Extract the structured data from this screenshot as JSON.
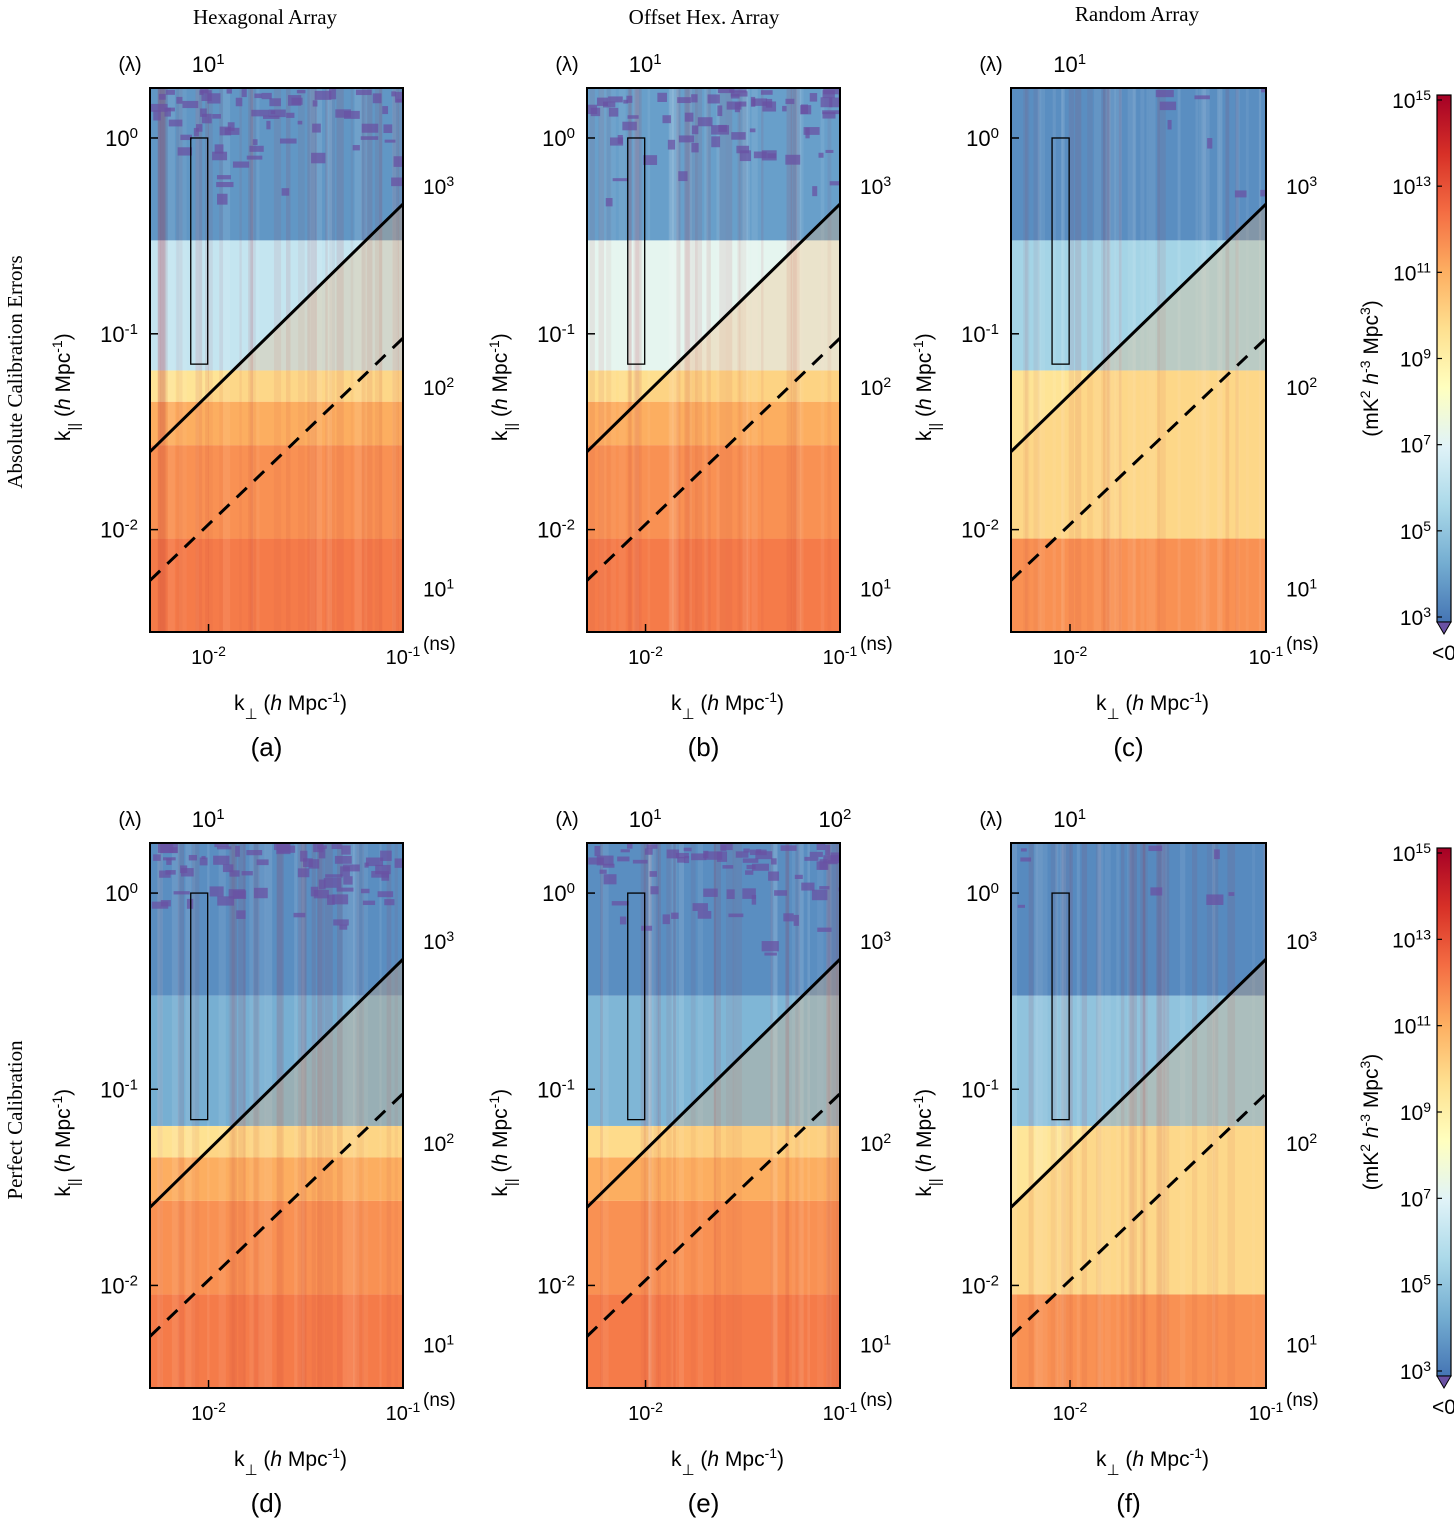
{
  "figure": {
    "column_titles": [
      "Hexagonal Array",
      "Offset Hex. Array",
      "Random Array"
    ],
    "row_labels": [
      "Absolute Calibration Errors",
      "Perfect Calibration"
    ]
  },
  "colorbar": {
    "label": "(mK^2 h^-3 Mpc^3)",
    "ticks": [
      "10^15",
      "10^13",
      "10^11",
      "10^9",
      "10^7",
      "10^5",
      "10^3"
    ],
    "below_label": "<0",
    "colors": [
      "#a50026",
      "#d73027",
      "#f46d43",
      "#fdae61",
      "#fee090",
      "#ffffbf",
      "#e0f3f8",
      "#abd9e9",
      "#74add1",
      "#4575b4"
    ],
    "below_color": "#6a51a3"
  },
  "chart_data": [
    {
      "type": "heatmap",
      "panel_label": "(a)",
      "array": "Hexagonal Array",
      "calibration": "Absolute Calibration Errors",
      "xlabel": "k⊥ (h Mpc^-1)",
      "ylabel": "k|| (h Mpc^-1)",
      "top_axis_label": "(λ)",
      "top_ticks": [
        "10^1"
      ],
      "right_axis_label": "(ns)",
      "right_ticks": [
        "10^3",
        "10^2",
        "10^1"
      ],
      "x_ticks": [
        "10^-2",
        "10^-1"
      ],
      "y_ticks": [
        "10^0",
        "10^-1",
        "10^-2"
      ],
      "xlim": [
        0.005,
        0.1
      ],
      "ylim": [
        0.003,
        1.8
      ],
      "log10_power_bands": [
        {
          "k_par": [
            0.003,
            0.009
          ],
          "log10_P": 12.4
        },
        {
          "k_par": [
            0.009,
            0.027
          ],
          "log10_P": 11.8
        },
        {
          "k_par": [
            0.027,
            0.045
          ],
          "log10_P": 11.0
        },
        {
          "k_par": [
            0.045,
            0.065
          ],
          "log10_P": 9.5
        },
        {
          "k_par": [
            0.065,
            0.3
          ],
          "log10_P": 6.3
        },
        {
          "k_par": [
            0.3,
            1.8
          ],
          "log10_P": 3.8
        }
      ],
      "horizon_line": {
        "k_perp": [
          0.005,
          0.1
        ],
        "k_par": [
          0.025,
          0.46
        ]
      },
      "primary_beam_line": {
        "k_perp": [
          0.005,
          0.1
        ],
        "k_par": [
          0.0055,
          0.095
        ]
      },
      "eor_window_box": {
        "k_perp": [
          0.0081,
          0.0099
        ],
        "k_par": [
          0.07,
          1.0
        ]
      }
    },
    {
      "type": "heatmap",
      "panel_label": "(b)",
      "array": "Offset Hex. Array",
      "calibration": "Absolute Calibration Errors",
      "xlabel": "k⊥ (h Mpc^-1)",
      "ylabel": "k|| (h Mpc^-1)",
      "top_axis_label": "(λ)",
      "top_ticks": [
        "10^1"
      ],
      "right_axis_label": "(ns)",
      "right_ticks": [
        "10^3",
        "10^2",
        "10^1"
      ],
      "x_ticks": [
        "10^-2",
        "10^-1"
      ],
      "y_ticks": [
        "10^0",
        "10^-1",
        "10^-2"
      ],
      "xlim": [
        0.005,
        0.1
      ],
      "ylim": [
        0.003,
        1.8
      ],
      "log10_power_bands": [
        {
          "k_par": [
            0.003,
            0.009
          ],
          "log10_P": 12.4
        },
        {
          "k_par": [
            0.009,
            0.027
          ],
          "log10_P": 11.8
        },
        {
          "k_par": [
            0.027,
            0.045
          ],
          "log10_P": 11.0
        },
        {
          "k_par": [
            0.045,
            0.065
          ],
          "log10_P": 9.7
        },
        {
          "k_par": [
            0.065,
            0.3
          ],
          "log10_P": 7.2
        },
        {
          "k_par": [
            0.3,
            1.8
          ],
          "log10_P": 4.0
        }
      ],
      "horizon_line": {
        "k_perp": [
          0.005,
          0.1
        ],
        "k_par": [
          0.025,
          0.46
        ]
      },
      "primary_beam_line": {
        "k_perp": [
          0.005,
          0.1
        ],
        "k_par": [
          0.0055,
          0.095
        ]
      },
      "eor_window_box": {
        "k_perp": [
          0.0081,
          0.0099
        ],
        "k_par": [
          0.07,
          1.0
        ]
      }
    },
    {
      "type": "heatmap",
      "panel_label": "(c)",
      "array": "Random Array",
      "calibration": "Absolute Calibration Errors",
      "xlabel": "k⊥ (h Mpc^-1)",
      "ylabel": "k|| (h Mpc^-1)",
      "top_axis_label": "(λ)",
      "top_ticks": [
        "10^1"
      ],
      "right_axis_label": "(ns)",
      "right_ticks": [
        "10^3",
        "10^2",
        "10^1"
      ],
      "x_ticks": [
        "10^-2",
        "10^-1"
      ],
      "y_ticks": [
        "10^0",
        "10^-1",
        "10^-2"
      ],
      "xlim": [
        0.005,
        0.1
      ],
      "ylim": [
        0.003,
        1.8
      ],
      "log10_power_bands": [
        {
          "k_par": [
            0.003,
            0.009
          ],
          "log10_P": 11.8
        },
        {
          "k_par": [
            0.009,
            0.065
          ],
          "log10_P": 9.5
        },
        {
          "k_par": [
            0.065,
            0.3
          ],
          "log10_P": 5.5
        },
        {
          "k_par": [
            0.3,
            1.8
          ],
          "log10_P": 3.6
        }
      ],
      "horizon_line": {
        "k_perp": [
          0.005,
          0.1
        ],
        "k_par": [
          0.025,
          0.46
        ]
      },
      "primary_beam_line": {
        "k_perp": [
          0.005,
          0.1
        ],
        "k_par": [
          0.0055,
          0.095
        ]
      },
      "eor_window_box": {
        "k_perp": [
          0.0081,
          0.0099
        ],
        "k_par": [
          0.07,
          1.0
        ]
      }
    },
    {
      "type": "heatmap",
      "panel_label": "(d)",
      "array": "Hexagonal Array",
      "calibration": "Perfect Calibration",
      "xlabel": "k⊥ (h Mpc^-1)",
      "ylabel": "k|| (h Mpc^-1)",
      "top_axis_label": "(λ)",
      "top_ticks": [
        "10^1"
      ],
      "right_axis_label": "(ns)",
      "right_ticks": [
        "10^3",
        "10^2",
        "10^1"
      ],
      "x_ticks": [
        "10^-2",
        "10^-1"
      ],
      "y_ticks": [
        "10^0",
        "10^-1",
        "10^-2"
      ],
      "xlim": [
        0.005,
        0.1
      ],
      "ylim": [
        0.003,
        1.8
      ],
      "log10_power_bands": [
        {
          "k_par": [
            0.003,
            0.009
          ],
          "log10_P": 12.4
        },
        {
          "k_par": [
            0.009,
            0.027
          ],
          "log10_P": 11.8
        },
        {
          "k_par": [
            0.027,
            0.045
          ],
          "log10_P": 11.0
        },
        {
          "k_par": [
            0.045,
            0.065
          ],
          "log10_P": 9.6
        },
        {
          "k_par": [
            0.065,
            0.3
          ],
          "log10_P": 4.4
        },
        {
          "k_par": [
            0.3,
            1.8
          ],
          "log10_P": 3.6
        }
      ],
      "horizon_line": {
        "k_perp": [
          0.005,
          0.1
        ],
        "k_par": [
          0.025,
          0.46
        ]
      },
      "primary_beam_line": {
        "k_perp": [
          0.005,
          0.1
        ],
        "k_par": [
          0.0055,
          0.095
        ]
      },
      "eor_window_box": {
        "k_perp": [
          0.0081,
          0.0099
        ],
        "k_par": [
          0.07,
          1.0
        ]
      }
    },
    {
      "type": "heatmap",
      "panel_label": "(e)",
      "array": "Offset Hex. Array",
      "calibration": "Perfect Calibration",
      "xlabel": "k⊥ (h Mpc^-1)",
      "ylabel": "k|| (h Mpc^-1)",
      "top_axis_label": "(λ)",
      "top_ticks": [
        "10^1",
        "10^2"
      ],
      "right_axis_label": "(ns)",
      "right_ticks": [
        "10^3",
        "10^2",
        "10^1"
      ],
      "x_ticks": [
        "10^-2",
        "10^-1"
      ],
      "y_ticks": [
        "10^0",
        "10^-1",
        "10^-2"
      ],
      "xlim": [
        0.005,
        0.1
      ],
      "ylim": [
        0.003,
        1.8
      ],
      "log10_power_bands": [
        {
          "k_par": [
            0.003,
            0.009
          ],
          "log10_P": 12.4
        },
        {
          "k_par": [
            0.009,
            0.027
          ],
          "log10_P": 11.8
        },
        {
          "k_par": [
            0.027,
            0.045
          ],
          "log10_P": 11.0
        },
        {
          "k_par": [
            0.045,
            0.065
          ],
          "log10_P": 9.8
        },
        {
          "k_par": [
            0.065,
            0.3
          ],
          "log10_P": 4.6
        },
        {
          "k_par": [
            0.3,
            1.8
          ],
          "log10_P": 3.6
        }
      ],
      "horizon_line": {
        "k_perp": [
          0.005,
          0.1
        ],
        "k_par": [
          0.025,
          0.46
        ]
      },
      "primary_beam_line": {
        "k_perp": [
          0.005,
          0.1
        ],
        "k_par": [
          0.0055,
          0.095
        ]
      },
      "eor_window_box": {
        "k_perp": [
          0.0081,
          0.0099
        ],
        "k_par": [
          0.07,
          1.0
        ]
      }
    },
    {
      "type": "heatmap",
      "panel_label": "(f)",
      "array": "Random Array",
      "calibration": "Perfect Calibration",
      "xlabel": "k⊥ (h Mpc^-1)",
      "ylabel": "k|| (h Mpc^-1)",
      "top_axis_label": "(λ)",
      "top_ticks": [
        "10^1"
      ],
      "right_axis_label": "(ns)",
      "right_ticks": [
        "10^3",
        "10^2",
        "10^1"
      ],
      "x_ticks": [
        "10^-2",
        "10^-1"
      ],
      "y_ticks": [
        "10^0",
        "10^-1",
        "10^-2"
      ],
      "xlim": [
        0.005,
        0.1
      ],
      "ylim": [
        0.003,
        1.8
      ],
      "log10_power_bands": [
        {
          "k_par": [
            0.003,
            0.009
          ],
          "log10_P": 11.8
        },
        {
          "k_par": [
            0.009,
            0.065
          ],
          "log10_P": 9.4
        },
        {
          "k_par": [
            0.065,
            0.3
          ],
          "log10_P": 5.0
        },
        {
          "k_par": [
            0.3,
            1.8
          ],
          "log10_P": 3.5
        }
      ],
      "horizon_line": {
        "k_perp": [
          0.005,
          0.1
        ],
        "k_par": [
          0.025,
          0.46
        ]
      },
      "primary_beam_line": {
        "k_perp": [
          0.005,
          0.1
        ],
        "k_par": [
          0.0055,
          0.095
        ]
      },
      "eor_window_box": {
        "k_perp": [
          0.0081,
          0.0099
        ],
        "k_par": [
          0.07,
          1.0
        ]
      }
    }
  ]
}
